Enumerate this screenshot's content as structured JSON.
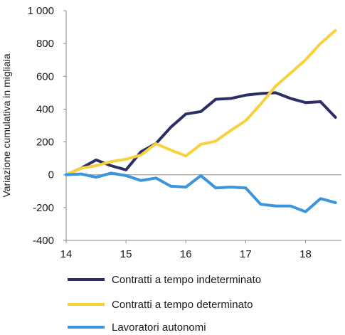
{
  "chart_data": {
    "type": "line",
    "ylabel": "Variazione cumulativa in migliaia",
    "xlabel": "",
    "ylim": [
      -400,
      1000
    ],
    "xlim": [
      14,
      18.6
    ],
    "yticks": [
      -400,
      -200,
      0,
      200,
      400,
      600,
      800,
      1000
    ],
    "ytick_labels": [
      "-400",
      "-200",
      "0",
      "200",
      "400",
      "600",
      "800",
      "1 000"
    ],
    "xticks": [
      14,
      15,
      16,
      17,
      18
    ],
    "xtick_labels": [
      "14",
      "15",
      "16",
      "17",
      "18"
    ],
    "grid": false,
    "legend_position": "bottom",
    "x": [
      14.0,
      14.25,
      14.5,
      14.75,
      15.0,
      15.25,
      15.5,
      15.75,
      16.0,
      16.25,
      16.5,
      16.75,
      17.0,
      17.25,
      17.5,
      17.75,
      18.0,
      18.25,
      18.5
    ],
    "series": [
      {
        "name": "Contratti a tempo indeterminato",
        "color": "#2b2f66",
        "values": [
          0,
          40,
          90,
          55,
          30,
          140,
          190,
          290,
          370,
          385,
          460,
          465,
          485,
          495,
          500,
          465,
          440,
          445,
          350
        ]
      },
      {
        "name": "Contratti a tempo determinato",
        "color": "#f7d23e",
        "values": [
          0,
          40,
          55,
          80,
          95,
          120,
          190,
          150,
          115,
          185,
          205,
          270,
          330,
          430,
          540,
          620,
          700,
          800,
          880
        ]
      },
      {
        "name": "Lavoratori autonomi",
        "color": "#3a95dd",
        "values": [
          0,
          5,
          -15,
          10,
          -5,
          -35,
          -20,
          -70,
          -75,
          -5,
          -80,
          -75,
          -80,
          -180,
          -190,
          -190,
          -225,
          -145,
          -170
        ]
      }
    ]
  }
}
